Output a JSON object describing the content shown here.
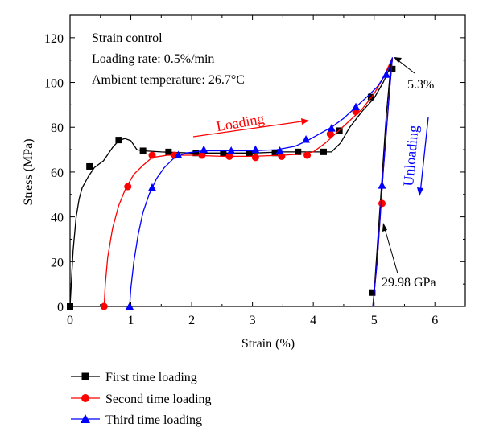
{
  "chart_data": {
    "type": "line",
    "xlabel": "Strain (%)",
    "ylabel": "Stress (MPa)",
    "xlim": [
      0,
      6.5
    ],
    "ylim": [
      0,
      130
    ],
    "xticks": [
      0,
      1,
      2,
      3,
      4,
      5,
      6
    ],
    "yticks": [
      0,
      20,
      40,
      60,
      80,
      100,
      120
    ],
    "grid": false,
    "legend_position": "bottom-left",
    "info_lines": [
      "Strain control",
      "Loading rate: 0.5%/min",
      "Ambient temperature: 26.7°C"
    ],
    "annotations": {
      "loading": "Loading",
      "unloading": "Unloading",
      "peak_strain": "5.3%",
      "modulus": "29.98 GPa"
    },
    "series": [
      {
        "name": "First time loading",
        "color": "#000000",
        "marker": "square",
        "x": [
          0,
          0.02,
          0.05,
          0.1,
          0.15,
          0.2,
          0.3,
          0.4,
          0.55,
          0.7,
          0.8,
          0.9,
          1.0,
          1.05,
          1.1,
          1.2,
          1.5,
          2.0,
          2.5,
          3.0,
          3.5,
          4.0,
          4.3,
          4.45,
          4.6,
          4.8,
          5.0,
          5.15,
          5.25,
          5.3,
          5.27,
          5.2,
          5.1,
          5.0,
          4.98
        ],
        "y": [
          0,
          10,
          25,
          40,
          48,
          53,
          58,
          62,
          65,
          71,
          74,
          75,
          74,
          72,
          70,
          69.5,
          69,
          68.5,
          68.5,
          68.5,
          69,
          69,
          69,
          73,
          80,
          87,
          93,
          100,
          106,
          110,
          106,
          85,
          45,
          6,
          0
        ],
        "markers_x": [
          0,
          0.32,
          0.8,
          1.2,
          1.62,
          2.07,
          2.52,
          2.95,
          3.37,
          3.75,
          4.17,
          4.43,
          4.95,
          5.3,
          4.97
        ],
        "markers_y": [
          0,
          62.5,
          74.3,
          69.5,
          69,
          68.5,
          68.5,
          68.5,
          68.5,
          69,
          69,
          78.5,
          93.5,
          106,
          6.2
        ]
      },
      {
        "name": "Second time loading",
        "color": "#ff0000",
        "marker": "circle",
        "x": [
          0.56,
          0.58,
          0.62,
          0.7,
          0.8,
          0.92,
          1.05,
          1.2,
          1.35,
          1.6,
          2.0,
          2.5,
          3.0,
          3.5,
          3.8,
          4.0,
          4.2,
          4.4,
          4.6,
          4.8,
          5.0,
          5.15,
          5.25,
          5.3,
          5.25,
          5.15,
          5.05,
          4.98
        ],
        "y": [
          0,
          10,
          22,
          35,
          45,
          53,
          59,
          63,
          66.5,
          67.5,
          67.5,
          67,
          67,
          67.5,
          68,
          69,
          73,
          78,
          83,
          88,
          95,
          102,
          108,
          111,
          95,
          60,
          20,
          0
        ],
        "markers_x": [
          0.56,
          0.95,
          1.35,
          1.72,
          2.17,
          2.62,
          3.05,
          3.48,
          3.9,
          4.28,
          4.7,
          5.13
        ],
        "markers_y": [
          0,
          53.5,
          67.5,
          67.5,
          67.5,
          67,
          66.5,
          67,
          67.5,
          77,
          87,
          46
        ]
      },
      {
        "name": "Third time loading",
        "color": "#0000ff",
        "marker": "triangle",
        "x": [
          0.98,
          1.0,
          1.05,
          1.12,
          1.2,
          1.3,
          1.42,
          1.55,
          1.7,
          1.9,
          2.2,
          2.6,
          3.0,
          3.4,
          3.7,
          3.9,
          4.1,
          4.3,
          4.5,
          4.7,
          4.9,
          5.05,
          5.15,
          5.25,
          5.3,
          5.25,
          5.15,
          5.05,
          4.98
        ],
        "y": [
          0,
          8,
          20,
          32,
          42,
          50,
          57,
          62,
          66,
          68.5,
          69.5,
          69.5,
          69.5,
          70,
          71.5,
          74,
          77,
          80,
          84,
          89,
          94,
          98,
          102,
          107,
          111,
          95,
          60,
          20,
          0
        ],
        "markers_x": [
          0.98,
          1.35,
          1.78,
          2.2,
          2.65,
          3.05,
          3.45,
          3.88,
          4.3,
          4.7,
          5.13,
          5.2
        ],
        "markers_y": [
          0,
          53,
          67.5,
          70,
          69.5,
          70,
          69.5,
          74.5,
          79.5,
          89,
          54,
          103.5
        ]
      }
    ]
  }
}
